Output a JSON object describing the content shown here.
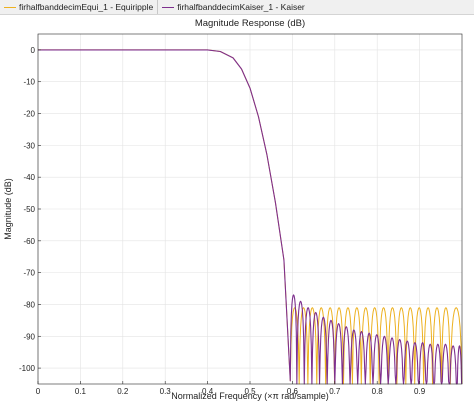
{
  "legend": [
    {
      "label": "firhalfbanddecimEqui_1 - Equiripple",
      "color": "#EDB120"
    },
    {
      "label": "firhalfbanddecimKaiser_1 - Kaiser",
      "color": "#7E2F8E"
    }
  ],
  "chart_data": {
    "type": "line",
    "title": "Magnitude Response (dB)",
    "xlabel": "Normalized Frequency  (×π rad/sample)",
    "ylabel": "Magnitude (dB)",
    "xlim": [
      0,
      1
    ],
    "ylim": [
      -105,
      5
    ],
    "xticks": [
      0,
      0.1,
      0.2,
      0.3,
      0.4,
      0.5,
      0.6,
      0.7,
      0.8,
      0.9
    ],
    "xtick_labels": [
      "0",
      "0.1",
      "0.2",
      "0.3",
      "0.4",
      "0.5",
      "0.6",
      "0.7",
      "0.8",
      "0.9"
    ],
    "yticks": [
      0,
      -10,
      -20,
      -30,
      -40,
      -50,
      -60,
      -70,
      -80,
      -90,
      -100
    ],
    "ytick_labels": [
      "0",
      "-10",
      "-20",
      "-30",
      "-40",
      "-50",
      "-60",
      "-70",
      "-80",
      "-90",
      "-100"
    ],
    "grid": true,
    "series": [
      {
        "name": "firhalfbanddecimEqui_1 - Equiripple",
        "color": "#EDB120",
        "passband": {
          "x": [
            0,
            0.4,
            0.43,
            0.46,
            0.48,
            0.5,
            0.52,
            0.54,
            0.56,
            0.58,
            0.595
          ],
          "y": [
            0,
            0,
            -0.5,
            -2.5,
            -6,
            -12,
            -21,
            -33,
            -48,
            -66,
            -104
          ]
        },
        "stopband": {
          "start": 0.595,
          "end": 1.0,
          "peak_db": -81,
          "null_db": -105,
          "lobe_centers": [
            0.606,
            0.626,
            0.647,
            0.668,
            0.689,
            0.71,
            0.731,
            0.752,
            0.773,
            0.794,
            0.815,
            0.836,
            0.857,
            0.878,
            0.899,
            0.92,
            0.941,
            0.962,
            0.983
          ],
          "peaks": [
            -81,
            -81,
            -81,
            -81,
            -81,
            -81,
            -81,
            -81,
            -81,
            -81,
            -81,
            -81,
            -81,
            -81,
            -81,
            -81,
            -81,
            -81,
            -81
          ]
        }
      },
      {
        "name": "firhalfbanddecimKaiser_1 - Kaiser",
        "color": "#7E2F8E",
        "passband": {
          "x": [
            0,
            0.4,
            0.43,
            0.46,
            0.48,
            0.5,
            0.52,
            0.54,
            0.56,
            0.58,
            0.595
          ],
          "y": [
            0,
            0,
            -0.5,
            -2.5,
            -6,
            -12,
            -21,
            -33,
            -48,
            -66,
            -104
          ]
        },
        "stopband": {
          "start": 0.595,
          "end": 1.0,
          "peak_db": -77,
          "null_db": -105,
          "lobe_centers": [
            0.602,
            0.619,
            0.637,
            0.655,
            0.673,
            0.691,
            0.709,
            0.727,
            0.745,
            0.763,
            0.781,
            0.799,
            0.817,
            0.835,
            0.853,
            0.871,
            0.889,
            0.907,
            0.925,
            0.943,
            0.961,
            0.979,
            0.997
          ],
          "peaks": [
            -77,
            -79,
            -81,
            -82.5,
            -84,
            -85,
            -86,
            -87,
            -88,
            -88.5,
            -89,
            -89.5,
            -90,
            -90.5,
            -91,
            -91.5,
            -92,
            -92,
            -92.5,
            -92.5,
            -92.5,
            -93,
            -93
          ]
        }
      }
    ]
  }
}
